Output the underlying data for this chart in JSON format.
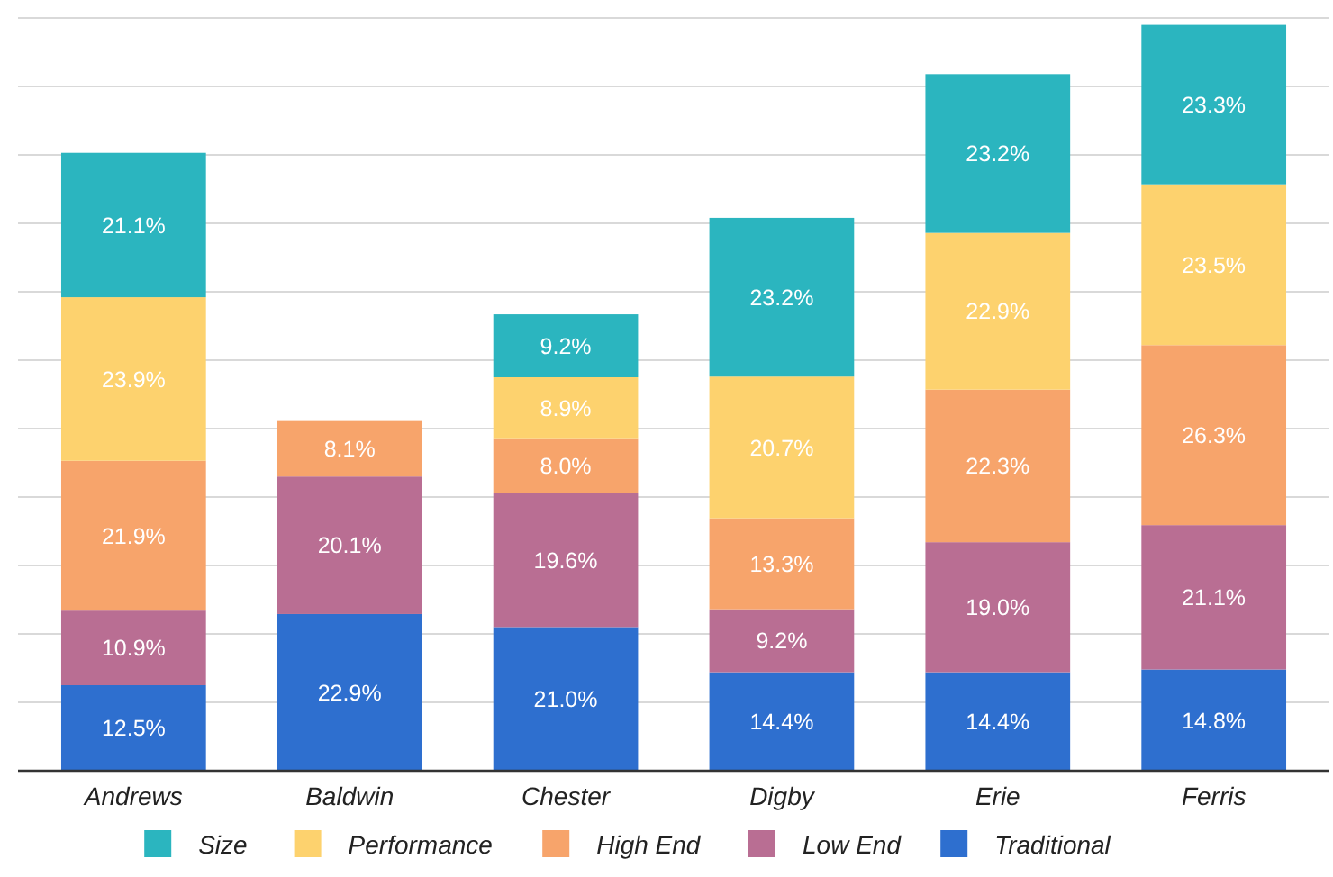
{
  "chart_data": {
    "type": "bar",
    "stacked": true,
    "categories": [
      "Andrews",
      "Baldwin",
      "Chester",
      "Digby",
      "Erie",
      "Ferris"
    ],
    "ylim": [
      0,
      110
    ],
    "yticks": [
      {
        "value": 0,
        "label": null
      },
      {
        "value": 10,
        "label": null
      },
      {
        "value": 20,
        "label": null
      },
      {
        "value": 30,
        "label": null
      },
      {
        "value": 40,
        "label": null
      },
      {
        "value": 50,
        "label": null
      },
      {
        "value": 60,
        "label": null
      },
      {
        "value": 70,
        "label": null
      },
      {
        "value": 80,
        "label": null
      },
      {
        "value": 90,
        "label": null
      },
      {
        "value": 100,
        "label": null
      },
      {
        "value": 110,
        "label": null
      }
    ],
    "tick_labels": "x",
    "grid": "y",
    "legend": "bottom",
    "series": [
      {
        "name": "Traditional",
        "color": "#2e6fcf",
        "values": [
          12.5,
          22.9,
          21.0,
          14.4,
          14.4,
          14.8
        ],
        "value_labels": [
          "12.5%",
          "22.9%",
          "21.0%",
          "14.4%",
          "14.4%",
          "14.8%"
        ]
      },
      {
        "name": "Low End",
        "color": "#b96e93",
        "values": [
          10.9,
          20.1,
          19.6,
          9.2,
          19.0,
          21.1
        ],
        "value_labels": [
          "10.9%",
          "20.1%",
          "19.6%",
          "9.2%",
          "19.0%",
          "21.1%"
        ]
      },
      {
        "name": "High End",
        "color": "#f7a46b",
        "values": [
          21.9,
          8.1,
          8.0,
          13.3,
          22.3,
          26.3
        ],
        "value_labels": [
          "21.9%",
          "8.1%",
          "8.0%",
          "13.3%",
          "22.3%",
          "26.3%"
        ]
      },
      {
        "name": "Performance",
        "color": "#fdd26e",
        "values": [
          23.9,
          null,
          8.9,
          20.7,
          22.9,
          23.5
        ],
        "value_labels": [
          "23.9%",
          null,
          "8.9%",
          "20.7%",
          "22.9%",
          "23.5%"
        ]
      },
      {
        "name": "Size",
        "color": "#2bb5bf",
        "values": [
          21.1,
          null,
          9.2,
          23.2,
          23.2,
          23.3
        ],
        "value_labels": [
          "21.1%",
          null,
          "9.2%",
          "23.2%",
          "23.2%",
          "23.3%"
        ]
      }
    ]
  }
}
